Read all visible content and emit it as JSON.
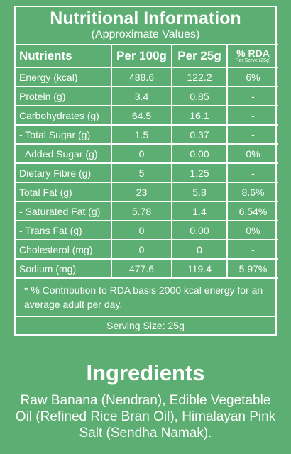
{
  "label": {
    "title": "Nutritional Information",
    "subtitle": "(Approximate Values)",
    "columns": [
      "Nutrients",
      "Per 100g",
      "Per 25g",
      "% RDA"
    ],
    "rda_note": "Per Serve (25g)",
    "rows": [
      [
        "Energy (kcal)",
        "488.6",
        "122.2",
        "6%"
      ],
      [
        "Protein (g)",
        "3.4",
        "0.85",
        "-"
      ],
      [
        "Carbohydrates (g)",
        "64.5",
        "16.1",
        "-"
      ],
      [
        "- Total Sugar (g)",
        "1.5",
        "0.37",
        "-"
      ],
      [
        "- Added Sugar (g)",
        "0",
        "0.00",
        "0%"
      ],
      [
        "Dietary Fibre (g)",
        "5",
        "1.25",
        "-"
      ],
      [
        "Total Fat (g)",
        "23",
        "5.8",
        "8.6%"
      ],
      [
        "- Saturated Fat (g)",
        "5.78",
        "1.4",
        "6.54%"
      ],
      [
        "- Trans Fat (g)",
        "0",
        "0.00",
        "0%"
      ],
      [
        "Cholesterol (mg)",
        "0",
        "0",
        "-"
      ],
      [
        "Sodium (mg)",
        "477.6",
        "119.4",
        "5.97%"
      ]
    ],
    "footnote": "* % Contribution to RDA basis 2000 kcal energy for an average adult per day.",
    "serving_size": "Serving Size: 25g"
  },
  "ingredients": {
    "title": "Ingredients",
    "lines": [
      "Raw Banana (Nendran), Edible Vegetable",
      "Oil (Refined Rice Bran Oil), Himalayan Pink",
      "Salt (Sendha Namak)."
    ]
  }
}
